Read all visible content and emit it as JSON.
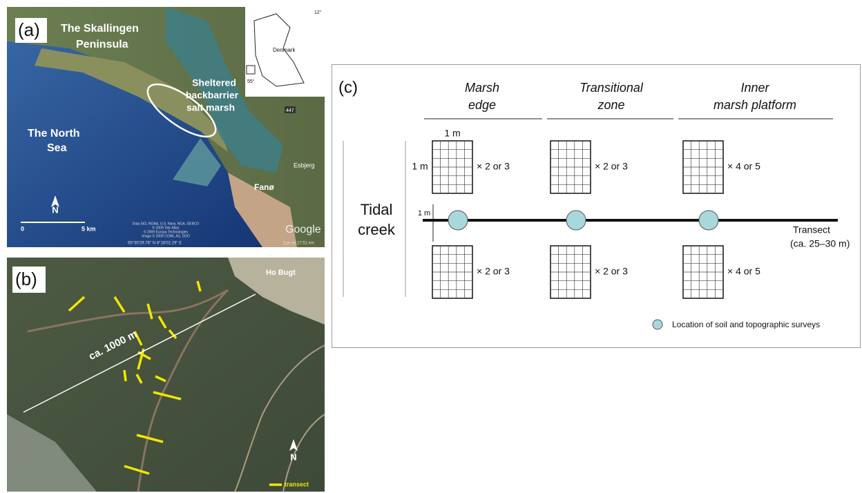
{
  "panel_a": {
    "label": "(a)",
    "peninsula": [
      "The Skallingen",
      "Peninsula"
    ],
    "marsh": [
      "Sheltered",
      "backbarrier",
      "salt marsh"
    ],
    "sea": [
      "The North",
      "Sea"
    ],
    "island": "Fanø",
    "town": "Esbjerg",
    "road": "447",
    "inset_country": "Denmark",
    "inset_lon": "12°",
    "inset_lat": "55°",
    "north": "N",
    "scale_start": "0",
    "scale_end": "5 km",
    "logo": "Google",
    "credits": [
      "Data SIO, NOAA, U.S. Navy, NGA, GEBCO",
      "© 2009 Tele Atlas",
      "© 2009 Europa Technologies",
      "Image © 2009 COWI, AS, DDO"
    ],
    "coords": "55°30'29.78\" N   8°18'02.29\" E",
    "eye_alt": "Eye alt  27.51 km"
  },
  "panel_b": {
    "label": "(b)",
    "bay": "Ho Bugt",
    "distance": "ca. 1000 m",
    "north": "N",
    "legend": "transect"
  },
  "panel_c": {
    "label": "(c)",
    "zones": [
      [
        "Marsh",
        "edge"
      ],
      [
        "Transitional",
        "zone"
      ],
      [
        "Inner",
        "marsh platform"
      ]
    ],
    "grid_size": [
      "1 m",
      "1 m"
    ],
    "spacing": "1 m",
    "replicates": [
      "× 2 or 3",
      "× 2 or 3",
      "× 4 or 5",
      "× 2 or 3",
      "× 2 or 3",
      "× 4 or 5"
    ],
    "creek": [
      "Tidal",
      "creek"
    ],
    "transect": [
      "Transect",
      "(ca. 25–30 m)"
    ],
    "legend": "Location of soil and topographic surveys"
  }
}
